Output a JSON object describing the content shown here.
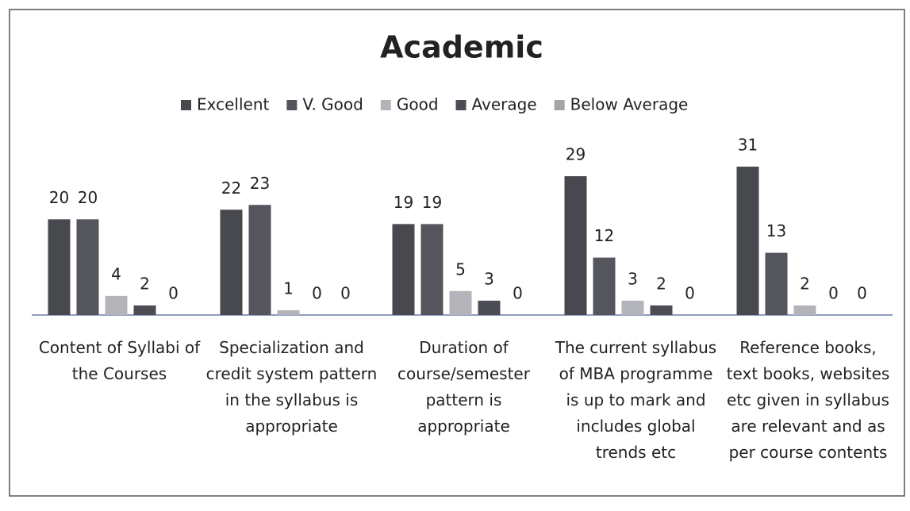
{
  "chart_data": {
    "type": "bar",
    "title": "Academic",
    "categories": [
      "Content of Syllabi of the Courses",
      "Specialization and credit system pattern in the syllabus is appropriate",
      "Duration of course/semester pattern is appropriate",
      "The current syllabus of MBA programme is up to mark and includes global trends etc",
      "Reference books, text books, websites etc given in syllabus are relevant and as per course contents"
    ],
    "series": [
      {
        "name": "Excellent",
        "color": "#48484f",
        "values": [
          20,
          22,
          19,
          29,
          31
        ]
      },
      {
        "name": "V. Good",
        "color": "#55555e",
        "values": [
          20,
          23,
          19,
          12,
          13
        ]
      },
      {
        "name": "Good",
        "color": "#b3b3ba",
        "values": [
          4,
          1,
          5,
          3,
          2
        ]
      },
      {
        "name": "Average",
        "color": "#4c4c55",
        "values": [
          2,
          0,
          3,
          2,
          0
        ]
      },
      {
        "name": "Below Average",
        "color": "#a3a3aa",
        "values": [
          0,
          0,
          0,
          0,
          0
        ]
      }
    ],
    "legend": "top"
  }
}
